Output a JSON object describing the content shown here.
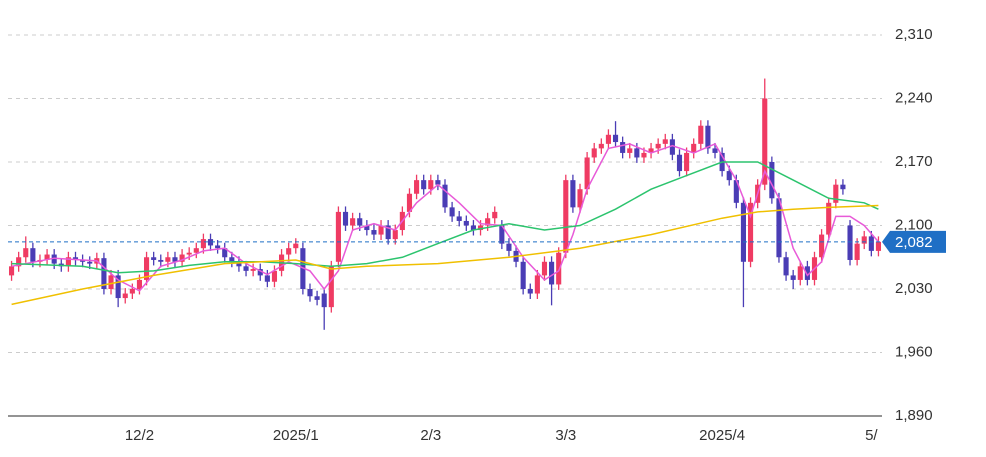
{
  "chart_data": {
    "type": "candlestick",
    "up_color": "#ef3b63",
    "down_color": "#4a3db5",
    "open": [
      2045,
      2055,
      2065,
      2075,
      2060,
      2062,
      2068,
      2058,
      2055,
      2065,
      2062,
      2060,
      2058,
      2064,
      2030,
      2045,
      2020,
      2025,
      2030,
      2040,
      2065,
      2062,
      2060,
      2065,
      2060,
      2068,
      2070,
      2075,
      2085,
      2078,
      2075,
      2065,
      2060,
      2055,
      2050,
      2052,
      2045,
      2038,
      2050,
      2068,
      2075,
      2075,
      2030,
      2022,
      2025,
      2010,
      2060,
      2115,
      2100,
      2108,
      2100,
      2095,
      2090,
      2100,
      2085,
      2095,
      2115,
      2135,
      2150,
      2140,
      2150,
      2145,
      2120,
      2110,
      2105,
      2100,
      2095,
      2100,
      2108,
      2100,
      2080,
      2072,
      2060,
      2030,
      2025,
      2045,
      2060,
      2035,
      2070,
      2150,
      2120,
      2140,
      2175,
      2185,
      2190,
      2200,
      2192,
      2180,
      2185,
      2175,
      2180,
      2185,
      2190,
      2195,
      2178,
      2160,
      2180,
      2190,
      2210,
      2185,
      2180,
      2160,
      2150,
      2125,
      2060,
      2125,
      2145,
      2170,
      2130,
      2065,
      2045,
      2040,
      2055,
      2040,
      2065,
      2090,
      2125,
      2145,
      2100,
      2062,
      2080,
      2088,
      2072
    ],
    "high": [
      2061,
      2071,
      2088,
      2081,
      2068,
      2074,
      2074,
      2064,
      2071,
      2071,
      2068,
      2066,
      2070,
      2070,
      2051,
      2051,
      2031,
      2036,
      2046,
      2071,
      2071,
      2068,
      2071,
      2071,
      2074,
      2076,
      2081,
      2091,
      2091,
      2084,
      2081,
      2071,
      2066,
      2061,
      2058,
      2058,
      2051,
      2056,
      2074,
      2081,
      2086,
      2081,
      2036,
      2028,
      2031,
      2061,
      2121,
      2121,
      2114,
      2114,
      2106,
      2101,
      2106,
      2106,
      2101,
      2121,
      2141,
      2156,
      2156,
      2156,
      2156,
      2151,
      2126,
      2116,
      2111,
      2106,
      2106,
      2114,
      2121,
      2106,
      2086,
      2078,
      2066,
      2036,
      2051,
      2066,
      2066,
      2076,
      2156,
      2156,
      2146,
      2181,
      2191,
      2196,
      2206,
      2215,
      2198,
      2191,
      2191,
      2186,
      2191,
      2196,
      2201,
      2201,
      2184,
      2186,
      2196,
      2216,
      2216,
      2191,
      2186,
      2166,
      2156,
      2131,
      2131,
      2151,
      2262,
      2176,
      2136,
      2071,
      2051,
      2061,
      2061,
      2071,
      2096,
      2131,
      2151,
      2151,
      2106,
      2086,
      2094,
      2094,
      2088
    ],
    "low": [
      2039,
      2049,
      2059,
      2054,
      2054,
      2056,
      2052,
      2049,
      2049,
      2056,
      2054,
      2052,
      2052,
      2024,
      2024,
      2010,
      2014,
      2019,
      2024,
      2034,
      2056,
      2054,
      2054,
      2054,
      2054,
      2062,
      2064,
      2069,
      2072,
      2069,
      2059,
      2054,
      2049,
      2044,
      2044,
      2039,
      2032,
      2032,
      2044,
      2062,
      2069,
      2024,
      2016,
      2012,
      1985,
      2004,
      2054,
      2094,
      2094,
      2094,
      2089,
      2084,
      2084,
      2079,
      2079,
      2089,
      2109,
      2129,
      2134,
      2134,
      2139,
      2114,
      2104,
      2099,
      2094,
      2089,
      2089,
      2094,
      2102,
      2074,
      2066,
      2054,
      2024,
      2019,
      2019,
      2039,
      2012,
      2029,
      2064,
      2114,
      2114,
      2134,
      2169,
      2179,
      2184,
      2186,
      2174,
      2174,
      2169,
      2169,
      2174,
      2179,
      2184,
      2172,
      2154,
      2154,
      2174,
      2184,
      2179,
      2174,
      2154,
      2144,
      2119,
      2010,
      2054,
      2119,
      2139,
      2124,
      2059,
      2039,
      2030,
      2034,
      2034,
      2034,
      2059,
      2084,
      2119,
      2134,
      2056,
      2056,
      2074,
      2066,
      2066
    ],
    "close": [
      2055,
      2065,
      2075,
      2060,
      2062,
      2068,
      2058,
      2055,
      2065,
      2062,
      2060,
      2058,
      2064,
      2030,
      2045,
      2020,
      2025,
      2030,
      2040,
      2065,
      2062,
      2060,
      2065,
      2060,
      2068,
      2070,
      2075,
      2085,
      2078,
      2075,
      2065,
      2060,
      2055,
      2050,
      2052,
      2045,
      2038,
      2050,
      2068,
      2075,
      2080,
      2030,
      2022,
      2018,
      2010,
      2055,
      2115,
      2100,
      2108,
      2100,
      2095,
      2090,
      2100,
      2085,
      2095,
      2115,
      2135,
      2150,
      2140,
      2150,
      2145,
      2120,
      2110,
      2105,
      2100,
      2095,
      2100,
      2108,
      2115,
      2080,
      2072,
      2060,
      2030,
      2025,
      2045,
      2060,
      2035,
      2070,
      2150,
      2120,
      2140,
      2175,
      2185,
      2190,
      2200,
      2192,
      2180,
      2185,
      2175,
      2180,
      2185,
      2190,
      2195,
      2178,
      2160,
      2180,
      2190,
      2210,
      2185,
      2180,
      2160,
      2150,
      2125,
      2060,
      2125,
      2145,
      2240,
      2130,
      2065,
      2045,
      2040,
      2055,
      2040,
      2065,
      2090,
      2125,
      2145,
      2140,
      2062,
      2080,
      2088,
      2072,
      2082
    ],
    "series": [
      {
        "color": "#e85ad8",
        "x": [
          0,
          6,
          12,
          15,
          18,
          21,
          24,
          27,
          30,
          33,
          36,
          39,
          42,
          44,
          46,
          48,
          51,
          54,
          57,
          60,
          63,
          66,
          69,
          72,
          75,
          77,
          79,
          81,
          84,
          87,
          90,
          93,
          96,
          99,
          102,
          104,
          106,
          108,
          110,
          112,
          114,
          116,
          118,
          120,
          122
        ],
        "values": [
          2055,
          2064,
          2061,
          2040,
          2028,
          2055,
          2062,
          2072,
          2075,
          2058,
          2046,
          2060,
          2050,
          2030,
          2050,
          2095,
          2102,
          2095,
          2125,
          2145,
          2125,
          2102,
          2100,
          2065,
          2040,
          2050,
          2090,
          2140,
          2185,
          2190,
          2180,
          2188,
          2180,
          2190,
          2150,
          2110,
          2160,
          2130,
          2075,
          2045,
          2060,
          2110,
          2110,
          2100,
          2082
        ]
      },
      {
        "color": "#2cc46e",
        "x": [
          0,
          10,
          15,
          20,
          25,
          30,
          35,
          40,
          45,
          50,
          55,
          60,
          65,
          70,
          75,
          80,
          85,
          90,
          95,
          100,
          105,
          110,
          115,
          120,
          122
        ],
        "values": [
          2058,
          2055,
          2048,
          2050,
          2056,
          2060,
          2060,
          2058,
          2055,
          2058,
          2065,
          2080,
          2095,
          2102,
          2095,
          2100,
          2118,
          2140,
          2155,
          2170,
          2170,
          2150,
          2130,
          2125,
          2118
        ]
      },
      {
        "color": "#f0c000",
        "x": [
          0,
          10,
          20,
          30,
          40,
          45,
          50,
          60,
          70,
          80,
          90,
          100,
          105,
          110,
          115,
          122
        ],
        "values": [
          2013,
          2030,
          2045,
          2058,
          2062,
          2052,
          2055,
          2058,
          2065,
          2075,
          2090,
          2108,
          2115,
          2118,
          2120,
          2122
        ]
      }
    ],
    "last_price": {
      "value": 2082,
      "label": "2,082",
      "color": "#1f6fc5"
    },
    "xlim": [
      -0.5,
      122.5
    ],
    "xticks": [
      {
        "value": 18,
        "label": "12/2"
      },
      {
        "value": 40,
        "label": "2025/1"
      },
      {
        "value": 59,
        "label": "2/3"
      },
      {
        "value": 78,
        "label": "3/3"
      },
      {
        "value": 100,
        "label": "2025/4"
      },
      {
        "value": 121,
        "label": "5/"
      }
    ],
    "ylim": [
      1890,
      2310
    ],
    "yticks": [
      {
        "value": 1890,
        "label": "1,890"
      },
      {
        "value": 1960,
        "label": "1,960"
      },
      {
        "value": 2030,
        "label": "2,030"
      },
      {
        "value": 2100,
        "label": "2,100"
      },
      {
        "value": 2170,
        "label": "2,170"
      },
      {
        "value": 2240,
        "label": "2,240"
      },
      {
        "value": 2310,
        "label": "2,310"
      }
    ],
    "grid": true
  }
}
